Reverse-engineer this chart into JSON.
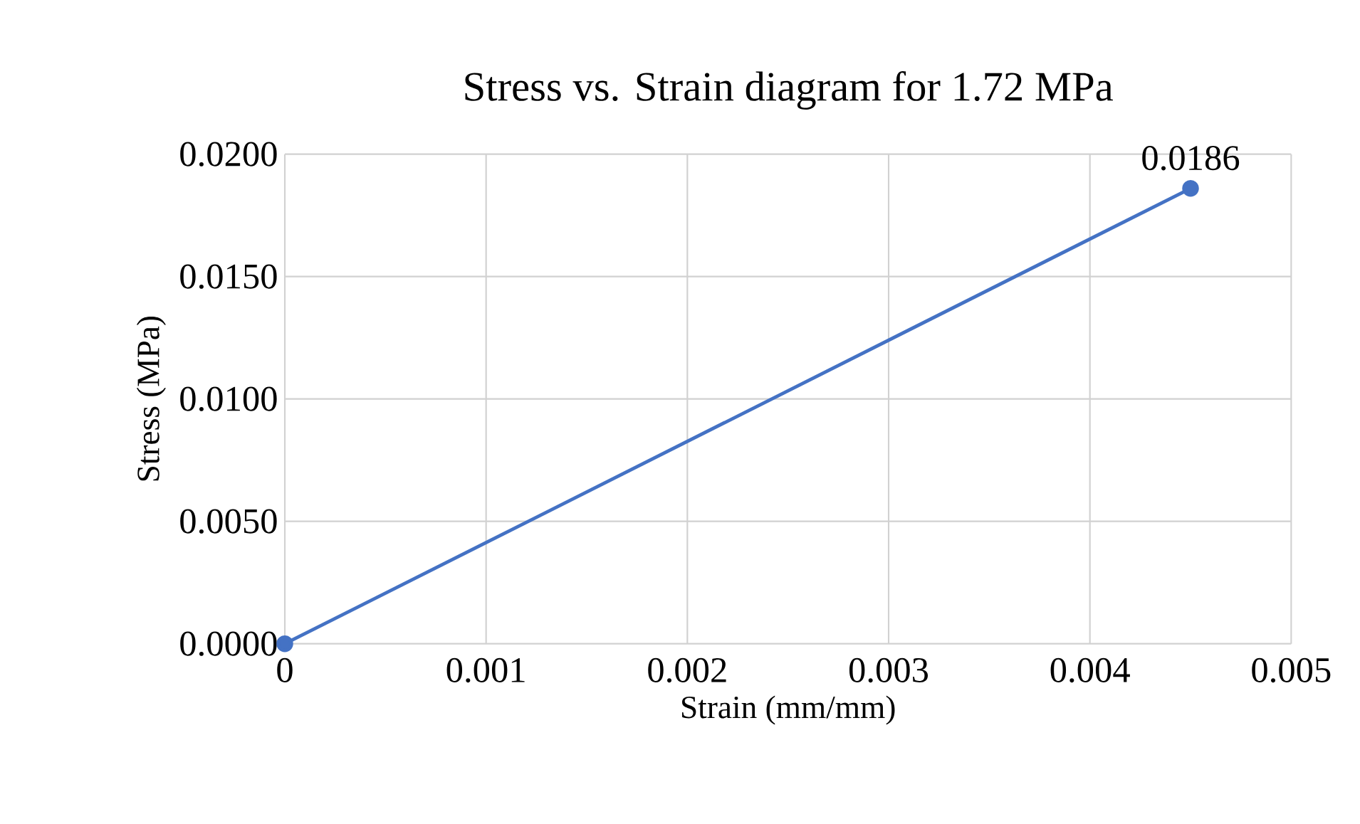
{
  "chart_data": {
    "type": "scatter",
    "title": "Stress vs. Strain diagram for 1.72 MPa",
    "xlabel": "Strain (mm/mm)",
    "ylabel": "Stress (MPa)",
    "x": [
      0,
      0.0045
    ],
    "series": [
      {
        "color": "#4472c4",
        "values": [
          0,
          0.0186
        ],
        "value_labels": [
          null,
          "0.0186"
        ]
      }
    ],
    "xlim": [
      0,
      0.005
    ],
    "ylim": [
      0,
      0.02
    ],
    "xticks": [
      0,
      0.001,
      0.002,
      0.003,
      0.004,
      0.005
    ],
    "yticks": [
      {
        "value": 0,
        "label": "0.0000"
      },
      {
        "value": 0.005,
        "label": "0.0050"
      },
      {
        "value": 0.01,
        "label": "0.0100"
      },
      {
        "value": 0.015,
        "label": "0.0150"
      },
      {
        "value": 0.02,
        "label": "0.0200"
      }
    ],
    "grid": true,
    "marker": "circle",
    "line_style": "solid"
  }
}
